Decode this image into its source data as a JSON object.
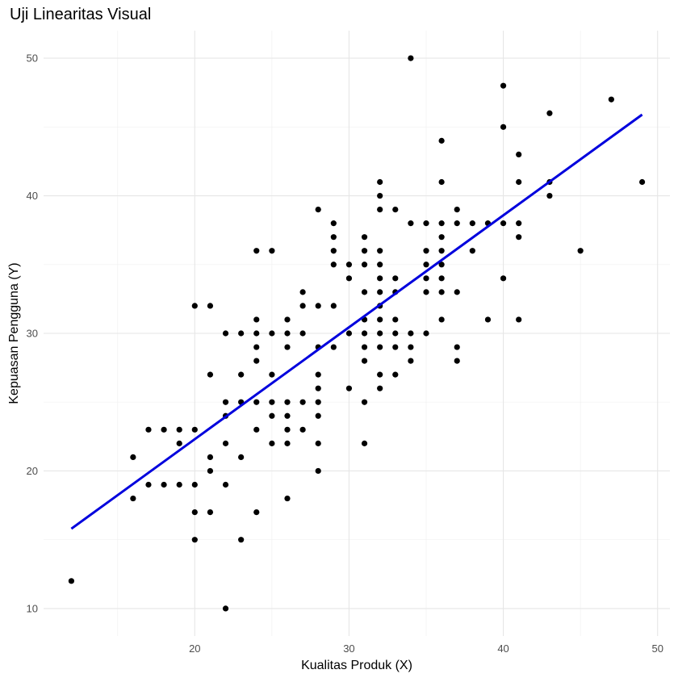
{
  "chart_data": {
    "type": "scatter",
    "title": "Uji Linearitas Visual",
    "xlabel": "Kualitas Produk (X)",
    "ylabel": "Kepuasan Pengguna (Y)",
    "xlim": [
      10.2,
      50.8
    ],
    "ylim": [
      8,
      52
    ],
    "x_ticks": [
      20,
      30,
      40,
      50
    ],
    "y_ticks": [
      10,
      20,
      30,
      40,
      50
    ],
    "x_minor_ticks": [
      15,
      25,
      35,
      45
    ],
    "y_minor_ticks": [
      15,
      25,
      35,
      45
    ],
    "grid": true,
    "point_color": "#000000",
    "regression_line": {
      "color": "#0000dd",
      "x": [
        12,
        49
      ],
      "y": [
        15.8,
        45.9
      ]
    },
    "points": [
      [
        12,
        12
      ],
      [
        16,
        18
      ],
      [
        16,
        21
      ],
      [
        17,
        19
      ],
      [
        17,
        23
      ],
      [
        18,
        19
      ],
      [
        18,
        23
      ],
      [
        19,
        19
      ],
      [
        19,
        22
      ],
      [
        19,
        23
      ],
      [
        20,
        15
      ],
      [
        20,
        17
      ],
      [
        20,
        19
      ],
      [
        20,
        23
      ],
      [
        20,
        32
      ],
      [
        21,
        17
      ],
      [
        21,
        20
      ],
      [
        21,
        21
      ],
      [
        21,
        27
      ],
      [
        21,
        32
      ],
      [
        22,
        10
      ],
      [
        22,
        19
      ],
      [
        22,
        22
      ],
      [
        22,
        24
      ],
      [
        22,
        25
      ],
      [
        22,
        30
      ],
      [
        23,
        15
      ],
      [
        23,
        21
      ],
      [
        23,
        25
      ],
      [
        23,
        27
      ],
      [
        23,
        30
      ],
      [
        24,
        17
      ],
      [
        24,
        23
      ],
      [
        24,
        25
      ],
      [
        24,
        28
      ],
      [
        24,
        29
      ],
      [
        24,
        30
      ],
      [
        24,
        31
      ],
      [
        24,
        36
      ],
      [
        25,
        22
      ],
      [
        25,
        24
      ],
      [
        25,
        25
      ],
      [
        25,
        27
      ],
      [
        25,
        30
      ],
      [
        25,
        36
      ],
      [
        26,
        18
      ],
      [
        26,
        22
      ],
      [
        26,
        23
      ],
      [
        26,
        24
      ],
      [
        26,
        25
      ],
      [
        26,
        29
      ],
      [
        26,
        30
      ],
      [
        26,
        31
      ],
      [
        27,
        23
      ],
      [
        27,
        25
      ],
      [
        27,
        30
      ],
      [
        27,
        32
      ],
      [
        27,
        33
      ],
      [
        28,
        20
      ],
      [
        28,
        22
      ],
      [
        28,
        24
      ],
      [
        28,
        25
      ],
      [
        28,
        26
      ],
      [
        28,
        27
      ],
      [
        28,
        29
      ],
      [
        28,
        32
      ],
      [
        28,
        39
      ],
      [
        29,
        29
      ],
      [
        29,
        32
      ],
      [
        29,
        35
      ],
      [
        29,
        36
      ],
      [
        29,
        37
      ],
      [
        29,
        38
      ],
      [
        30,
        26
      ],
      [
        30,
        30
      ],
      [
        30,
        34
      ],
      [
        30,
        35
      ],
      [
        31,
        22
      ],
      [
        31,
        25
      ],
      [
        31,
        28
      ],
      [
        31,
        29
      ],
      [
        31,
        30
      ],
      [
        31,
        31
      ],
      [
        31,
        33
      ],
      [
        31,
        35
      ],
      [
        31,
        36
      ],
      [
        31,
        37
      ],
      [
        32,
        26
      ],
      [
        32,
        27
      ],
      [
        32,
        29
      ],
      [
        32,
        30
      ],
      [
        32,
        31
      ],
      [
        32,
        32
      ],
      [
        32,
        33
      ],
      [
        32,
        34
      ],
      [
        32,
        35
      ],
      [
        32,
        36
      ],
      [
        32,
        39
      ],
      [
        32,
        40
      ],
      [
        32,
        41
      ],
      [
        33,
        27
      ],
      [
        33,
        29
      ],
      [
        33,
        30
      ],
      [
        33,
        31
      ],
      [
        33,
        33
      ],
      [
        33,
        34
      ],
      [
        33,
        39
      ],
      [
        34,
        28
      ],
      [
        34,
        29
      ],
      [
        34,
        30
      ],
      [
        34,
        38
      ],
      [
        34,
        50
      ],
      [
        35,
        30
      ],
      [
        35,
        33
      ],
      [
        35,
        34
      ],
      [
        35,
        35
      ],
      [
        35,
        36
      ],
      [
        35,
        38
      ],
      [
        36,
        31
      ],
      [
        36,
        33
      ],
      [
        36,
        34
      ],
      [
        36,
        35
      ],
      [
        36,
        36
      ],
      [
        36,
        37
      ],
      [
        36,
        38
      ],
      [
        36,
        41
      ],
      [
        36,
        44
      ],
      [
        37,
        28
      ],
      [
        37,
        29
      ],
      [
        37,
        33
      ],
      [
        37,
        38
      ],
      [
        37,
        39
      ],
      [
        38,
        36
      ],
      [
        38,
        38
      ],
      [
        39,
        31
      ],
      [
        39,
        38
      ],
      [
        40,
        34
      ],
      [
        40,
        38
      ],
      [
        40,
        45
      ],
      [
        40,
        48
      ],
      [
        41,
        31
      ],
      [
        41,
        37
      ],
      [
        41,
        38
      ],
      [
        41,
        41
      ],
      [
        41,
        43
      ],
      [
        43,
        40
      ],
      [
        43,
        41
      ],
      [
        43,
        46
      ],
      [
        45,
        36
      ],
      [
        47,
        47
      ],
      [
        49,
        41
      ]
    ]
  }
}
